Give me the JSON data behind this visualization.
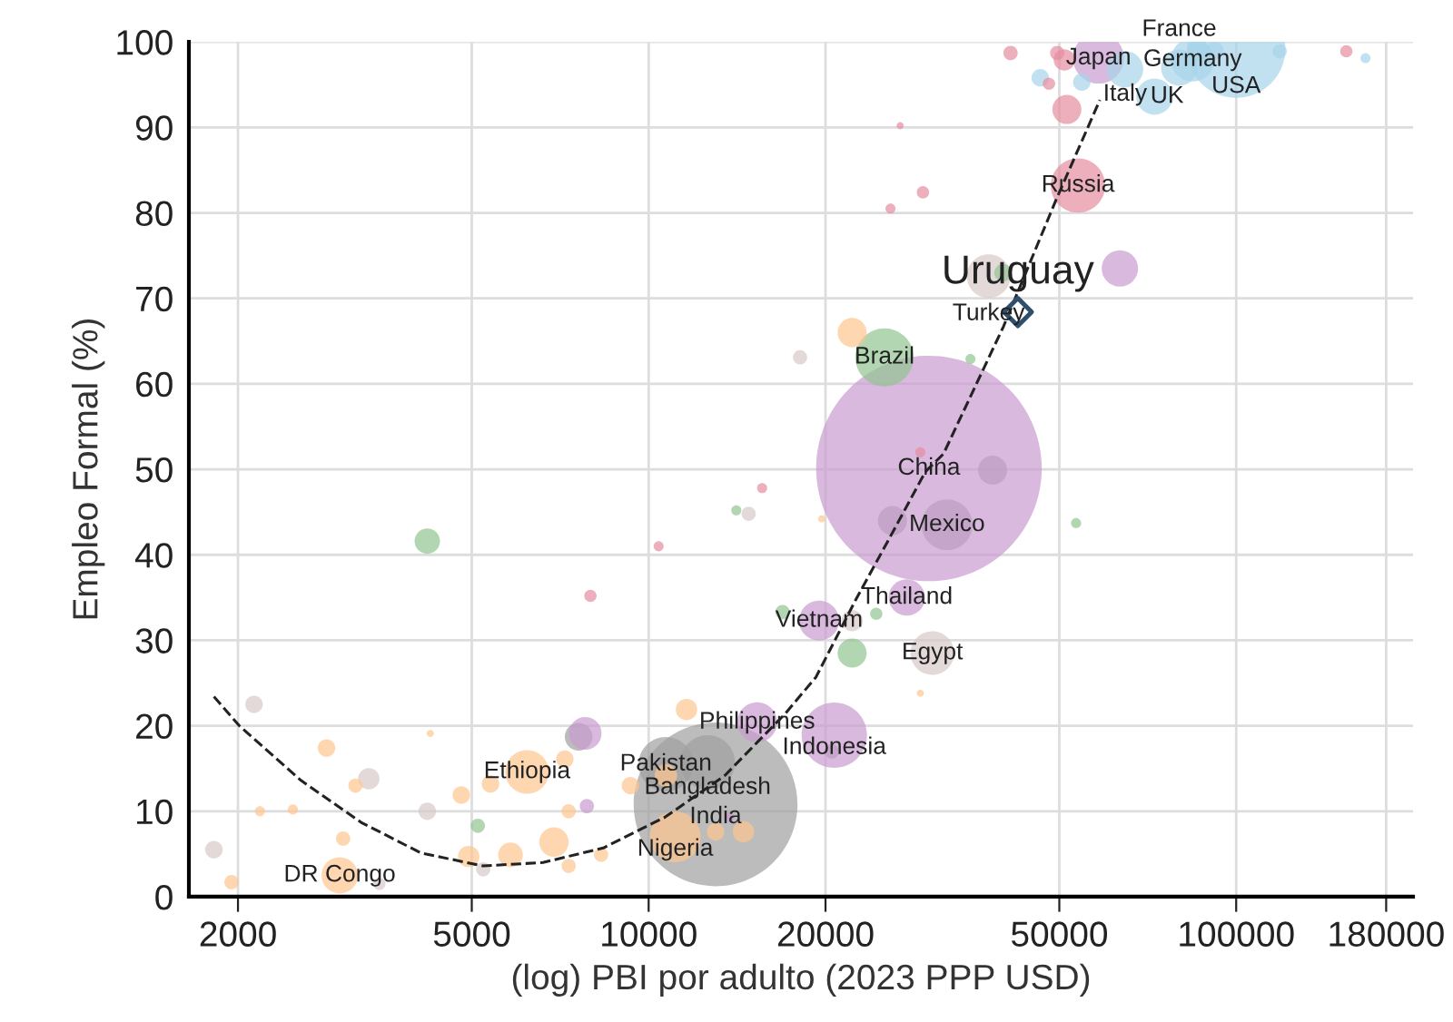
{
  "chart_data": {
    "type": "bubble",
    "xlabel": "(log) PBI por adulto (2023 PPP USD)",
    "ylabel": "Empleo Formal (%)",
    "log": "x",
    "xlim": [
      1650,
      200000
    ],
    "ylim": [
      0,
      100
    ],
    "xticks": [
      2000,
      5000,
      10000,
      20000,
      50000,
      100000,
      180000
    ],
    "yticks": [
      0,
      10,
      20,
      30,
      40,
      50,
      60,
      70,
      80,
      90,
      100
    ],
    "grid": true,
    "series": [
      {
        "color": "#a0a0a0",
        "x": [
          13000,
          12600,
          10700,
          32200,
          38500,
          26000,
          7600,
          20500
        ],
        "values": [
          10.8,
          15.7,
          15.5,
          43.5,
          49.9,
          44.0,
          18.7,
          17.0
        ],
        "sizes": [
          0.527,
          0.0585,
          0.0585,
          0.051,
          0.0166,
          0.0166,
          0.015,
          0.004
        ]
      },
      {
        "color": "#c99bd0",
        "x": [
          30000,
          58300,
          63400,
          27500,
          19500,
          15300,
          20700,
          7800,
          7850,
          13700
        ],
        "values": [
          50.1,
          98.1,
          73.5,
          35.0,
          32.3,
          20.4,
          18.9,
          19.1,
          10.6,
          9.3
        ],
        "sizes": [
          1,
          0.051,
          0.026,
          0.026,
          0.0315,
          0.0315,
          0.084,
          0.021,
          0.004,
          0.002
        ]
      },
      {
        "color": "#a6d4ea",
        "x": [
          100000,
          84300,
          72600,
          64700,
          80000,
          46400,
          54600,
          86100,
          92000,
          118600,
          166000
        ],
        "values": [
          99.2,
          97.9,
          93.6,
          96.8,
          97.0,
          95.8,
          95.3,
          99.0,
          99.0,
          98.9,
          98.1
        ],
        "sizes": [
          0.19,
          0.037,
          0.026,
          0.026,
          0.026,
          0.006,
          0.006,
          0.009,
          0.006,
          0.004,
          0.002
        ]
      },
      {
        "color": "#e58da0",
        "x": [
          53800,
          51500,
          41300,
          49600,
          51000,
          48000,
          29300,
          25800,
          26800,
          15600,
          10400,
          7960,
          29000,
          154000
        ],
        "values": [
          83.2,
          92.1,
          98.7,
          98.7,
          97.9,
          95.1,
          82.4,
          80.5,
          90.2,
          47.8,
          41.0,
          35.2,
          52.0,
          98.9
        ],
        "sizes": [
          0.058,
          0.0166,
          0.004,
          0.004,
          0.009,
          0.003,
          0.003,
          0.002,
          0.001,
          0.002,
          0.002,
          0.003,
          0.002,
          0.003
        ]
      },
      {
        "color": "#d9c9c9",
        "x": [
          30400,
          37900,
          18100,
          22200,
          14800,
          2130,
          3340,
          4200,
          1820,
          3480,
          5230
        ],
        "values": [
          28.5,
          72.6,
          63.1,
          32.3,
          44.8,
          22.5,
          13.8,
          10.0,
          5.5,
          1.5,
          3.2
        ],
        "sizes": [
          0.0375,
          0.0375,
          0.004,
          0.009,
          0.004,
          0.006,
          0.009,
          0.006,
          0.006,
          0.003,
          0.004
        ]
      },
      {
        "color": "#92c492",
        "x": [
          25200,
          4200,
          22200,
          24400,
          35300,
          40100,
          53400,
          16900,
          5120,
          14100
        ],
        "values": [
          63.1,
          41.6,
          28.5,
          33.1,
          62.9,
          73.0,
          43.7,
          33.3,
          8.3,
          45.2
        ],
        "sizes": [
          0.0666,
          0.0127,
          0.0166,
          0.003,
          0.002,
          0.006,
          0.002,
          0.004,
          0.004,
          0.002
        ]
      },
      {
        "color": "#fdc58e",
        "x": [
          11100,
          6210,
          2980,
          22200,
          2830,
          3170,
          2180,
          2480,
          1950,
          3020,
          4800,
          5380,
          4940,
          5820,
          6900,
          7310,
          7200,
          7310,
          8300,
          11600,
          9310,
          13000,
          14500,
          4250,
          10700,
          29000,
          19700
        ],
        "values": [
          7.0,
          14.6,
          2.5,
          66.0,
          17.4,
          13.0,
          10.0,
          10.2,
          1.7,
          6.8,
          11.9,
          13.2,
          4.7,
          4.9,
          6.4,
          10.0,
          16.1,
          3.6,
          4.9,
          21.9,
          13.0,
          7.6,
          7.6,
          19.1,
          14.2,
          23.8,
          44.2
        ],
        "sizes": [
          0.051,
          0.0375,
          0.026,
          0.0166,
          0.006,
          0.004,
          0.002,
          0.002,
          0.004,
          0.004,
          0.006,
          0.006,
          0.009,
          0.012,
          0.017,
          0.004,
          0.006,
          0.004,
          0.004,
          0.009,
          0.006,
          0.006,
          0.009,
          0.001,
          0.01,
          0.001,
          0.001
        ]
      },
      {
        "type": "line",
        "color": "#222222",
        "line_style": "dashed",
        "marker": "none",
        "x": [
          1820,
          2010,
          2560,
          3240,
          4100,
          5230,
          6610,
          8370,
          10660,
          13490,
          17070,
          19270,
          22540,
          25630,
          29570,
          31750,
          40170,
          49350,
          58610
        ],
        "values": [
          23.4,
          20.0,
          13.6,
          8.7,
          5.1,
          3.6,
          4.0,
          5.7,
          9.3,
          14.2,
          21.4,
          25.7,
          34.8,
          41.8,
          49.7,
          51.8,
          66.7,
          81.5,
          93.2
        ]
      },
      {
        "type": "scatter",
        "color": "#2f4f6f",
        "marker": "diamond",
        "x": [
          42500
        ],
        "values": [
          68.4
        ]
      }
    ],
    "annotations": [
      {
        "text": "Uruguay",
        "x": 42500,
        "y": 68.4
      },
      {
        "text": "Japan",
        "x": 58300,
        "y": 98.1
      },
      {
        "text": "Germany",
        "x": 84300,
        "y": 97.9
      },
      {
        "text": "Italy",
        "x": 64700,
        "y": 96.8
      },
      {
        "text": "France",
        "x": 80000,
        "y": 97.0
      },
      {
        "text": "USA",
        "x": 100000,
        "y": 99.2
      },
      {
        "text": "UK",
        "x": 72600,
        "y": 93.6
      },
      {
        "text": "Russia",
        "x": 53800,
        "y": 83.2
      },
      {
        "text": "Turkey",
        "x": 37900,
        "y": 72.6
      },
      {
        "text": "Brazil",
        "x": 25200,
        "y": 63.1
      },
      {
        "text": "China",
        "x": 30000,
        "y": 50.1
      },
      {
        "text": "Mexico",
        "x": 32200,
        "y": 43.5
      },
      {
        "text": "Thailand",
        "x": 27500,
        "y": 35.0
      },
      {
        "text": "Vietnam",
        "x": 19500,
        "y": 32.3
      },
      {
        "text": "Egypt",
        "x": 30400,
        "y": 28.5
      },
      {
        "text": "Philippines",
        "x": 15300,
        "y": 20.4
      },
      {
        "text": "Indonesia",
        "x": 20700,
        "y": 18.9
      },
      {
        "text": "Pakistan",
        "x": 10700,
        "y": 15.5
      },
      {
        "text": "Bangladesh",
        "x": 12600,
        "y": 15.7
      },
      {
        "text": "India",
        "x": 13000,
        "y": 10.8
      },
      {
        "text": "Nigeria",
        "x": 11100,
        "y": 7.0
      },
      {
        "text": "Ethiopia",
        "x": 6210,
        "y": 14.6
      },
      {
        "text": "DR Congo",
        "x": 2980,
        "y": 2.5
      }
    ]
  }
}
